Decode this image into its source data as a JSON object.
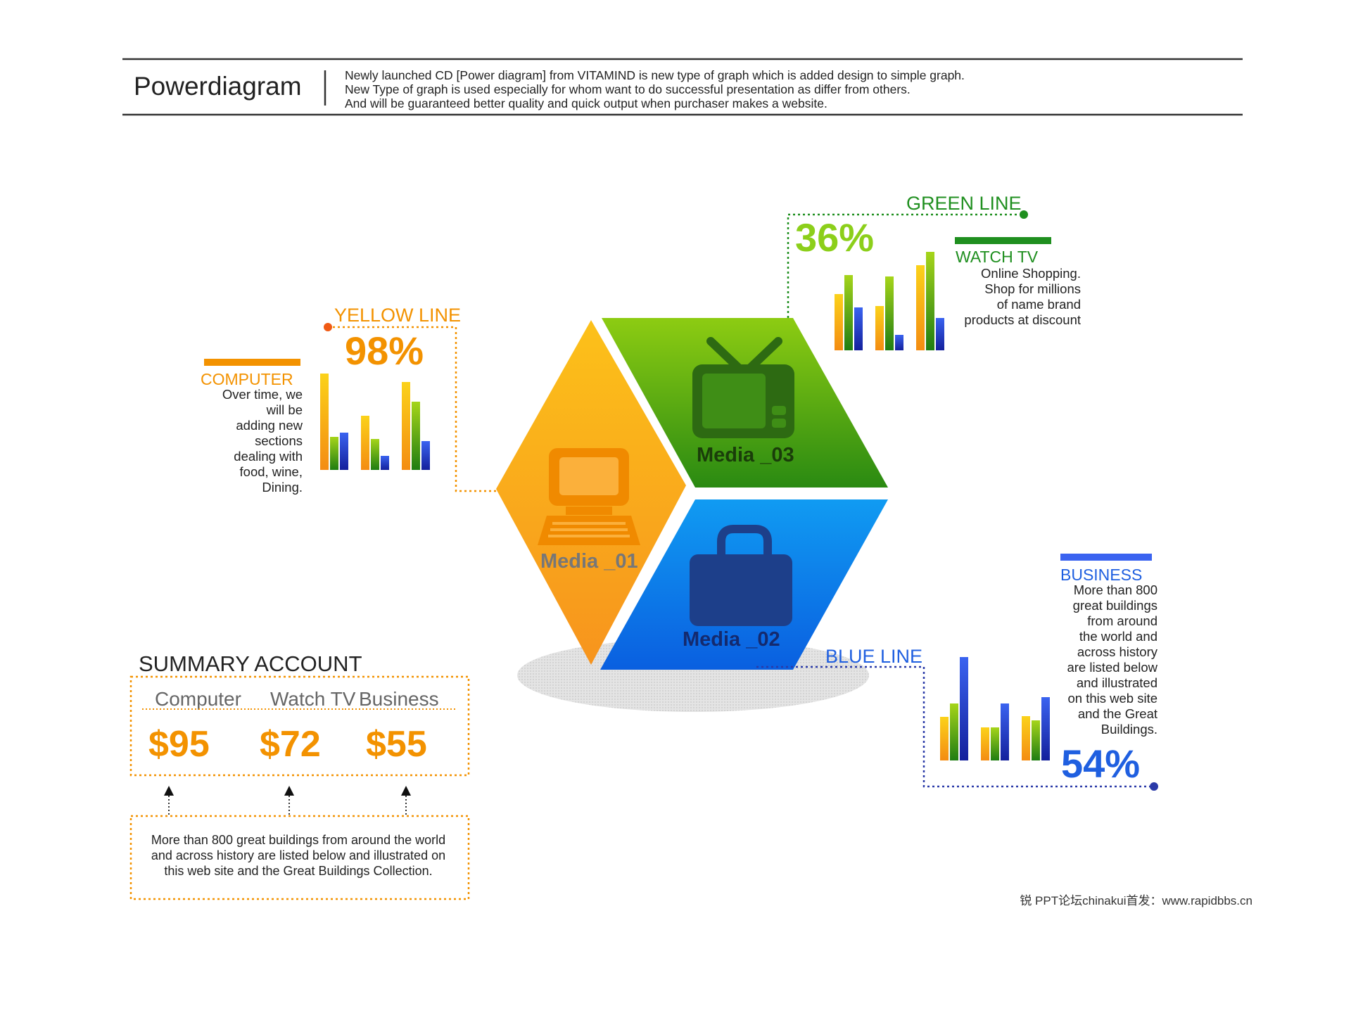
{
  "header": {
    "title": "Powerdiagram",
    "lines": [
      "Newly launched CD [Power diagram] from VITAMIND is new type of graph which is added design to simple graph.",
      "New Type of graph is used especially for whom want to do successful presentation as differ from others.",
      "And will be guaranteed better quality and quick output when purchaser makes a website."
    ]
  },
  "colors": {
    "yellow": "#f7a21b",
    "green": "#1f8f1f",
    "lime": "#8ccf1a",
    "blue": "#1f5fe0",
    "orange_text": "#f39200",
    "media_text": "#777777"
  },
  "media": [
    {
      "label": "Media _01",
      "icon": "computer-icon"
    },
    {
      "label": "Media _02",
      "icon": "briefcase-icon"
    },
    {
      "label": "Media _03",
      "icon": "tv-icon"
    }
  ],
  "yellow": {
    "line_label": "YELLOW LINE",
    "percent": "98%",
    "heading": "COMPUTER",
    "desc": [
      "Over time, we",
      "will be",
      "adding new",
      "sections",
      "dealing with",
      "food, wine,",
      "Dining."
    ]
  },
  "green": {
    "line_label": "GREEN LINE",
    "percent": "36%",
    "heading": "WATCH TV",
    "desc": [
      "Online Shopping.",
      "Shop for millions",
      "of name brand",
      "products at discount"
    ]
  },
  "blue": {
    "line_label": "BLUE LINE",
    "percent": "54%",
    "heading": "BUSINESS",
    "desc": [
      "More than 800",
      "great buildings",
      "from around",
      "the world and",
      "across history",
      "are listed below",
      "and illustrated",
      "on this web site",
      "and the Great",
      "Buildings."
    ]
  },
  "summary": {
    "title": "SUMMARY ACCOUNT",
    "columns": [
      {
        "label": "Computer",
        "price": "$95"
      },
      {
        "label": "Watch TV",
        "price": "$72"
      },
      {
        "label": "Business",
        "price": "$55"
      }
    ],
    "note": [
      "More than 800 great buildings from around the world",
      "and across history are listed below and illustrated on",
      "this web site and the Great Buildings Collection."
    ]
  },
  "footer": "锐   PPT论坛chinakui首发：www.rapidbbs.cn"
}
